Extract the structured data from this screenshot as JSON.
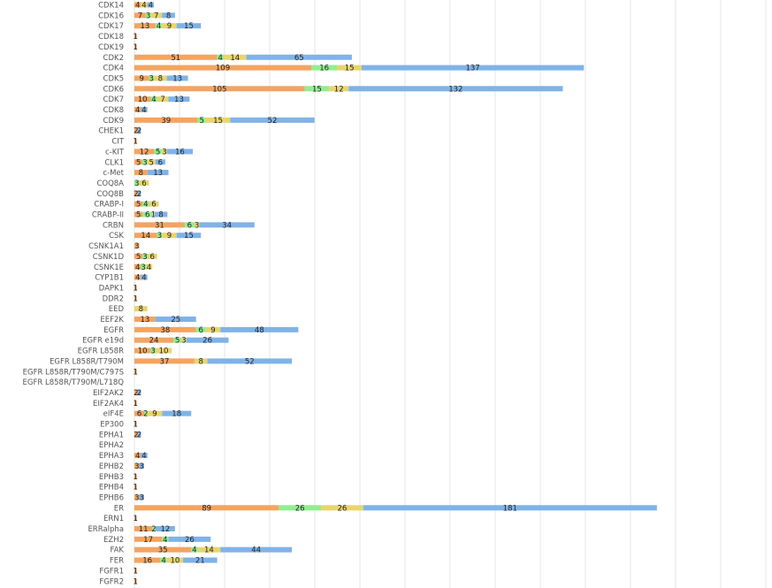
{
  "chart_data": {
    "type": "bar",
    "orientation": "horizontal",
    "stacked": true,
    "grid": true,
    "legend": "none",
    "title": "",
    "xlabel": "",
    "ylabel": "",
    "colors": [
      "#f4a460",
      "#90ee90",
      "#e8d56b",
      "#7fb3e8"
    ],
    "rows": [
      {
        "label": "CDK14",
        "values": [
          4,
          0,
          4,
          4
        ]
      },
      {
        "label": "CDK16",
        "values": [
          7,
          3,
          7,
          8
        ]
      },
      {
        "label": "CDK17",
        "values": [
          13,
          4,
          9,
          15
        ]
      },
      {
        "label": "CDK18",
        "values": [
          1,
          0,
          0,
          0
        ]
      },
      {
        "label": "CDK19",
        "values": [
          1,
          0,
          0,
          0
        ]
      },
      {
        "label": "CDK2",
        "values": [
          51,
          4,
          14,
          65
        ]
      },
      {
        "label": "CDK4",
        "values": [
          109,
          16,
          15,
          137
        ]
      },
      {
        "label": "CDK5",
        "values": [
          9,
          3,
          8,
          13
        ]
      },
      {
        "label": "CDK6",
        "values": [
          105,
          15,
          12,
          132
        ]
      },
      {
        "label": "CDK7",
        "values": [
          10,
          4,
          7,
          13
        ]
      },
      {
        "label": "CDK8",
        "values": [
          4,
          0,
          0,
          4
        ]
      },
      {
        "label": "CDK9",
        "values": [
          39,
          5,
          15,
          52
        ]
      },
      {
        "label": "CHEK1",
        "values": [
          2,
          0,
          0,
          2
        ]
      },
      {
        "label": "CIT",
        "values": [
          1,
          0,
          0,
          0
        ]
      },
      {
        "label": "c-KIT",
        "values": [
          12,
          5,
          3,
          16
        ]
      },
      {
        "label": "CLK1",
        "values": [
          5,
          3,
          5,
          6
        ]
      },
      {
        "label": "c-Met",
        "values": [
          8,
          0,
          0,
          13
        ]
      },
      {
        "label": "COQ8A",
        "values": [
          0,
          3,
          6,
          0
        ]
      },
      {
        "label": "COQ8B",
        "values": [
          2,
          0,
          0,
          2
        ]
      },
      {
        "label": "CRABP-I",
        "values": [
          5,
          4,
          6,
          0
        ]
      },
      {
        "label": "CRABP-II",
        "values": [
          5,
          6,
          1,
          8
        ]
      },
      {
        "label": "CRBN",
        "values": [
          31,
          6,
          3,
          34
        ]
      },
      {
        "label": "CSK",
        "values": [
          14,
          3,
          9,
          15
        ]
      },
      {
        "label": "CSNK1A1",
        "values": [
          3,
          0,
          0,
          0
        ]
      },
      {
        "label": "CSNK1D",
        "values": [
          5,
          3,
          6,
          0
        ]
      },
      {
        "label": "CSNK1E",
        "values": [
          4,
          3,
          4,
          0
        ]
      },
      {
        "label": "CYP1B1",
        "values": [
          4,
          0,
          0,
          4
        ]
      },
      {
        "label": "DAPK1",
        "values": [
          1,
          0,
          0,
          0
        ]
      },
      {
        "label": "DDR2",
        "values": [
          1,
          0,
          0,
          0
        ]
      },
      {
        "label": "EED",
        "values": [
          0,
          0,
          8,
          0
        ]
      },
      {
        "label": "EEF2K",
        "values": [
          13,
          0,
          0,
          25
        ]
      },
      {
        "label": "EGFR",
        "values": [
          38,
          6,
          9,
          48
        ]
      },
      {
        "label": "EGFR e19d",
        "values": [
          24,
          5,
          3,
          26
        ]
      },
      {
        "label": "EGFR L858R",
        "values": [
          10,
          3,
          10,
          0
        ]
      },
      {
        "label": "EGFR L858R/T790M",
        "values": [
          37,
          0,
          8,
          52
        ]
      },
      {
        "label": "EGFR L858R/T790M/C797S",
        "values": [
          1,
          0,
          0,
          0
        ]
      },
      {
        "label": "EGFR L858R/T790M/L718Q",
        "values": [
          0,
          0,
          0,
          0
        ]
      },
      {
        "label": "EIF2AK2",
        "values": [
          2,
          0,
          0,
          2
        ]
      },
      {
        "label": "EIF2AK4",
        "values": [
          1,
          0,
          0,
          0
        ]
      },
      {
        "label": "eIF4E",
        "values": [
          6,
          2,
          9,
          18
        ]
      },
      {
        "label": "EP300",
        "values": [
          1,
          0,
          0,
          0
        ]
      },
      {
        "label": "EPHA1",
        "values": [
          2,
          0,
          0,
          2
        ]
      },
      {
        "label": "EPHA2",
        "values": [
          0,
          0,
          0,
          0
        ]
      },
      {
        "label": "EPHA3",
        "values": [
          4,
          0,
          0,
          4
        ]
      },
      {
        "label": "EPHB2",
        "values": [
          3,
          0,
          0,
          3
        ]
      },
      {
        "label": "EPHB3",
        "values": [
          1,
          0,
          0,
          0
        ]
      },
      {
        "label": "EPHB4",
        "values": [
          1,
          0,
          0,
          0
        ]
      },
      {
        "label": "EPHB6",
        "values": [
          3,
          0,
          0,
          3
        ]
      },
      {
        "label": "ER",
        "values": [
          89,
          26,
          26,
          181
        ]
      },
      {
        "label": "ERN1",
        "values": [
          1,
          0,
          0,
          0
        ]
      },
      {
        "label": "ERRalpha",
        "values": [
          11,
          2,
          0,
          12
        ]
      },
      {
        "label": "EZH2",
        "values": [
          17,
          4,
          0,
          26
        ]
      },
      {
        "label": "FAK",
        "values": [
          35,
          4,
          14,
          44
        ]
      },
      {
        "label": "FER",
        "values": [
          16,
          4,
          10,
          21
        ]
      },
      {
        "label": "FGFR1",
        "values": [
          1,
          0,
          0,
          0
        ]
      },
      {
        "label": "FGFR2",
        "values": [
          1,
          0,
          0,
          0
        ]
      }
    ]
  }
}
